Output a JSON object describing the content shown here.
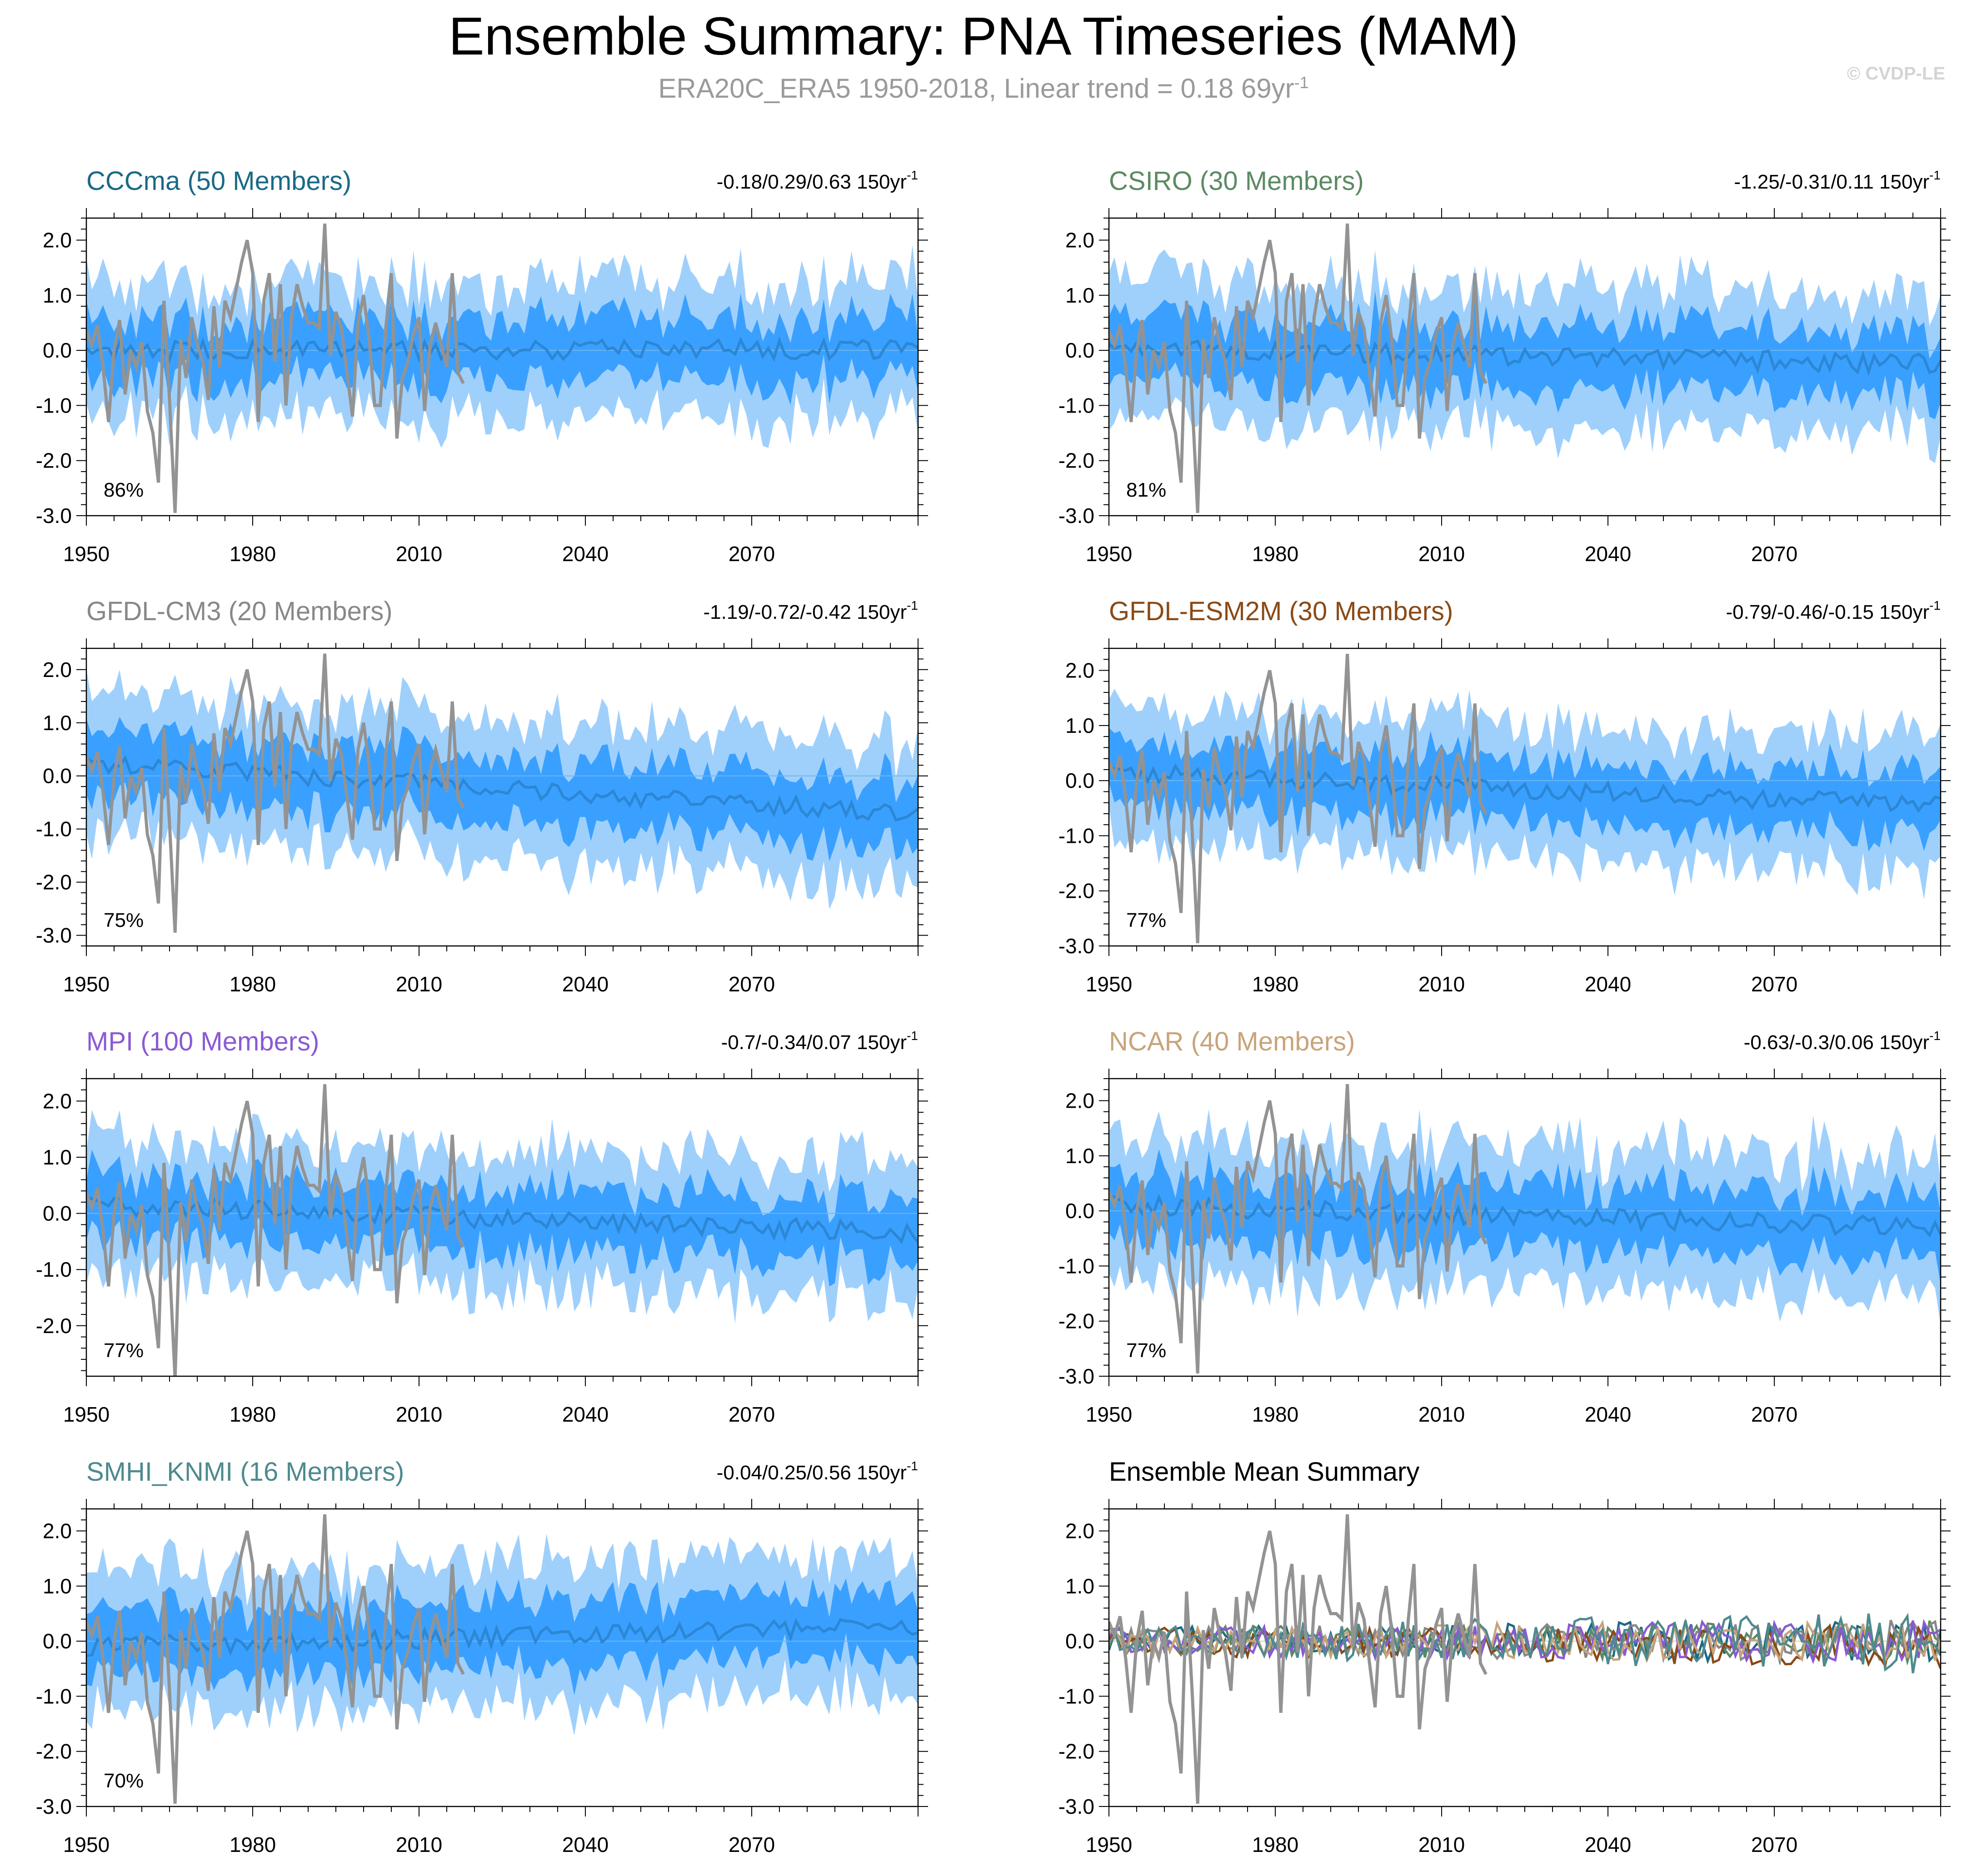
{
  "title": "Ensemble Summary: PNA Timeseries (MAM)",
  "subtitle": {
    "text": "ERA20C_ERA5 1950-2018, Linear trend = 0.18 69yr",
    "superscript": "-1"
  },
  "watermark": "© CVDP-LE",
  "colors": {
    "outer_band": "#9fd0fc",
    "inner_band": "#3aa0ff",
    "ensemble_mean": "#2c87d4",
    "observations": "#939393"
  },
  "chart_data": [
    {
      "type": "area",
      "title": "CCCma (50 Members)",
      "title_color": "#1a6a86",
      "trend_text": "-0.18/0.29/0.63 150yr",
      "trend_superscript": "-1",
      "percent": "86%",
      "ymean_offset": 0.0,
      "ymean_slope": 0.02,
      "spread": 1.0,
      "bias_up": 0,
      "ylim": [
        -3.0,
        2.4
      ],
      "yticks": [
        "2.0",
        "1.0",
        "0.0",
        "-1.0",
        "-2.0",
        "-3.0"
      ],
      "ytick_values": [
        2,
        1,
        0,
        -1,
        -2,
        -3
      ],
      "xticks": [
        "1950",
        "1980",
        "2010",
        "2040",
        "2070"
      ],
      "xtick_values": [
        1950,
        1980,
        2010,
        2040,
        2070
      ],
      "xlim": [
        1950,
        2100
      ]
    },
    {
      "type": "area",
      "title": "CSIRO (30 Members)",
      "title_color": "#5c8a63",
      "trend_text": "-1.25/-0.31/0.11 150yr",
      "trend_superscript": "-1",
      "percent": "81%",
      "ymean_offset": 0.05,
      "ymean_slope": -0.25,
      "spread": 1.05,
      "bias_up": 0,
      "ylim": [
        -3.0,
        2.4
      ],
      "yticks": [
        "2.0",
        "1.0",
        "0.0",
        "-1.0",
        "-2.0",
        "-3.0"
      ],
      "ytick_values": [
        2,
        1,
        0,
        -1,
        -2,
        -3
      ],
      "xticks": [
        "1950",
        "1980",
        "2010",
        "2040",
        "2070"
      ],
      "xtick_values": [
        1950,
        1980,
        2010,
        2040,
        2070
      ],
      "xlim": [
        1950,
        2100
      ]
    },
    {
      "type": "area",
      "title": "GFDL-CM3 (20 Members)",
      "title_color": "#888888",
      "trend_text": "-1.19/-0.72/-0.42 150yr",
      "trend_superscript": "-1",
      "percent": "75%",
      "ymean_offset": 0.25,
      "ymean_slope": -0.72,
      "spread": 1.1,
      "bias_up": 0,
      "ylim": [
        -3.2,
        2.4
      ],
      "yticks": [
        "2.0",
        "1.0",
        "0.0",
        "-1.0",
        "-2.0",
        "-3.0"
      ],
      "ytick_values": [
        2,
        1,
        0,
        -1,
        -2,
        -3
      ],
      "xticks": [
        "1950",
        "1980",
        "2010",
        "2040",
        "2070"
      ],
      "xtick_values": [
        1950,
        1980,
        2010,
        2040,
        2070
      ],
      "xlim": [
        1950,
        2100
      ]
    },
    {
      "type": "area",
      "title": "GFDL-ESM2M (30 Members)",
      "title_color": "#8a4a16",
      "trend_text": "-0.79/-0.46/-0.15 150yr",
      "trend_superscript": "-1",
      "percent": "77%",
      "ymean_offset": 0.15,
      "ymean_slope": -0.46,
      "spread": 1.0,
      "bias_up": 0,
      "ylim": [
        -3.0,
        2.4
      ],
      "yticks": [
        "2.0",
        "1.0",
        "0.0",
        "-1.0",
        "-2.0",
        "-3.0"
      ],
      "ytick_values": [
        2,
        1,
        0,
        -1,
        -2,
        -3
      ],
      "xticks": [
        "1950",
        "1980",
        "2010",
        "2040",
        "2070"
      ],
      "xtick_values": [
        1950,
        1980,
        2010,
        2040,
        2070
      ],
      "xlim": [
        1950,
        2100
      ]
    },
    {
      "type": "area",
      "title": "MPI (100 Members)",
      "title_color": "#8a5ad4",
      "trend_text": "-0.7/-0.34/0.07 150yr",
      "trend_superscript": "-1",
      "percent": "77%",
      "ymean_offset": 0.15,
      "ymean_slope": -0.34,
      "spread": 1.0,
      "bias_up": 0,
      "ylim": [
        -2.9,
        2.4
      ],
      "yticks": [
        "2.0",
        "1.0",
        "0.0",
        "-1.0",
        "-2.0"
      ],
      "ytick_values": [
        2,
        1,
        0,
        -1,
        -2
      ],
      "xticks": [
        "1950",
        "1980",
        "2010",
        "2040",
        "2070"
      ],
      "xtick_values": [
        1950,
        1980,
        2010,
        2040,
        2070
      ],
      "xlim": [
        1950,
        2100
      ]
    },
    {
      "type": "area",
      "title": "NCAR (40 Members)",
      "title_color": "#c8a47a",
      "trend_text": "-0.63/-0.3/0.06 150yr",
      "trend_superscript": "-1",
      "percent": "77%",
      "ymean_offset": 0.1,
      "ymean_slope": -0.3,
      "spread": 1.05,
      "bias_up": 0,
      "ylim": [
        -3.0,
        2.4
      ],
      "yticks": [
        "2.0",
        "1.0",
        "0.0",
        "-1.0",
        "-2.0",
        "-3.0"
      ],
      "ytick_values": [
        2,
        1,
        0,
        -1,
        -2,
        -3
      ],
      "xticks": [
        "1950",
        "1980",
        "2010",
        "2040",
        "2070"
      ],
      "xtick_values": [
        1950,
        1980,
        2010,
        2040,
        2070
      ],
      "xlim": [
        1950,
        2100
      ]
    },
    {
      "type": "area",
      "title": "SMHI_KNMI (16 Members)",
      "title_color": "#4e8a8e",
      "trend_text": "-0.04/0.25/0.56 150yr",
      "trend_superscript": "-1",
      "percent": "70%",
      "ymean_offset": -0.1,
      "ymean_slope": 0.25,
      "spread": 1.05,
      "bias_up": 0,
      "ylim": [
        -3.0,
        2.4
      ],
      "yticks": [
        "2.0",
        "1.0",
        "0.0",
        "-1.0",
        "-2.0",
        "-3.0"
      ],
      "ytick_values": [
        2,
        1,
        0,
        -1,
        -2,
        -3
      ],
      "xticks": [
        "1950",
        "1980",
        "2010",
        "2040",
        "2070"
      ],
      "xtick_values": [
        1950,
        1980,
        2010,
        2040,
        2070
      ],
      "xlim": [
        1950,
        2100
      ]
    },
    {
      "type": "line",
      "title": "Ensemble Mean Summary",
      "title_color": "#000000",
      "trend_text": "",
      "trend_superscript": "",
      "percent": "",
      "ylim": [
        -3.0,
        2.4
      ],
      "yticks": [
        "2.0",
        "1.0",
        "0.0",
        "-1.0",
        "-2.0",
        "-3.0"
      ],
      "ytick_values": [
        2,
        1,
        0,
        -1,
        -2,
        -3
      ],
      "xticks": [
        "1950",
        "1980",
        "2010",
        "2040",
        "2070"
      ],
      "xtick_values": [
        1950,
        1980,
        2010,
        2040,
        2070
      ],
      "xlim": [
        1950,
        2100
      ],
      "series_colors": [
        "#1a6a86",
        "#5c8a63",
        "#888888",
        "#8a4a16",
        "#8a5ad4",
        "#c8a47a",
        "#4e8a8e"
      ]
    }
  ],
  "observations": {
    "years": [
      1950,
      1951,
      1952,
      1953,
      1954,
      1955,
      1956,
      1957,
      1958,
      1959,
      1960,
      1961,
      1962,
      1963,
      1964,
      1965,
      1966,
      1967,
      1968,
      1969,
      1970,
      1971,
      1972,
      1973,
      1974,
      1975,
      1976,
      1977,
      1978,
      1979,
      1980,
      1981,
      1982,
      1983,
      1984,
      1985,
      1986,
      1987,
      1988,
      1989,
      1990,
      1991,
      1992,
      1993,
      1994,
      1995,
      1996,
      1997,
      1998,
      1999,
      2000,
      2001,
      2002,
      2003,
      2004,
      2005,
      2006,
      2007,
      2008,
      2009,
      2010,
      2011,
      2012,
      2013,
      2014,
      2015,
      2016,
      2017,
      2018
    ],
    "values": [
      0.35,
      0.1,
      0.45,
      -0.3,
      -1.3,
      0.0,
      0.55,
      -0.8,
      0.0,
      -0.3,
      0.15,
      -1.1,
      -1.5,
      -2.4,
      0.9,
      -0.9,
      -2.95,
      0.2,
      -0.5,
      0.6,
      0.1,
      -0.2,
      -0.9,
      0.8,
      -0.3,
      0.9,
      0.6,
      1.1,
      1.6,
      2.0,
      1.4,
      -1.3,
      0.9,
      1.4,
      -0.2,
      1.2,
      -1.0,
      0.6,
      1.2,
      0.8,
      0.5,
      0.5,
      0.4,
      2.3,
      -0.1,
      0.7,
      0.4,
      -0.4,
      -1.2,
      0.5,
      1.0,
      0.2,
      -1.0,
      -1.0,
      0.4,
      1.4,
      -1.6,
      -0.5,
      -0.2,
      0.3,
      0.6,
      -1.1,
      0.1,
      0.5,
      0.1,
      -0.3,
      1.4,
      -0.4,
      -0.6
    ]
  }
}
